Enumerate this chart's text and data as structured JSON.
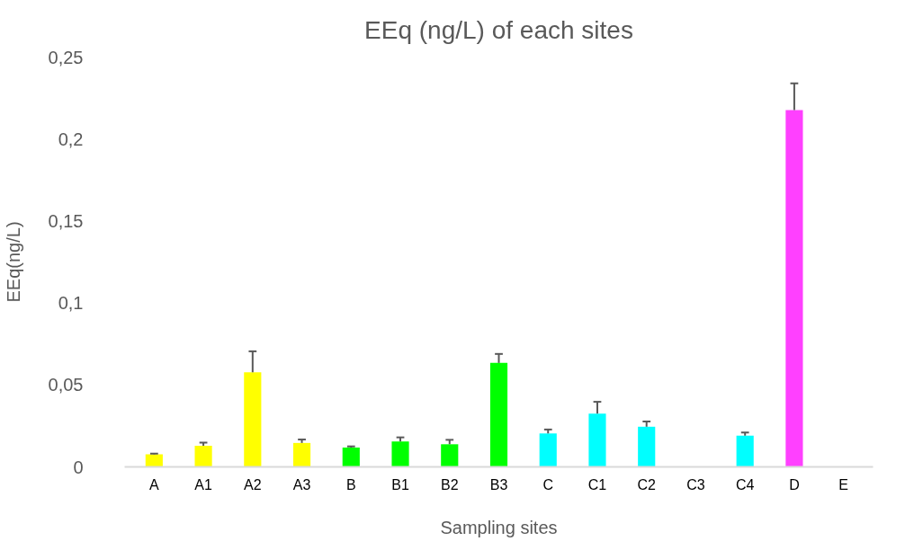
{
  "chart_data": {
    "type": "bar",
    "title": "EEq (ng/L) of each sites",
    "xlabel": "Sampling sites",
    "ylabel": "EEq(ng/L)",
    "categories": [
      "A",
      "A1",
      "A2",
      "A3",
      "B",
      "B1",
      "B2",
      "B3",
      "C",
      "C1",
      "C2",
      "C3",
      "C4",
      "D",
      "E"
    ],
    "values": [
      0.0077,
      0.0129,
      0.0577,
      0.0146,
      0.0118,
      0.0155,
      0.0138,
      0.0634,
      0.0204,
      0.0325,
      0.0245,
      0,
      0.0191,
      0.2177,
      0
    ],
    "errors": [
      [
        0.0077,
        0.0081
      ],
      [
        0.0129,
        0.0148
      ],
      [
        0.0577,
        0.0705
      ],
      [
        0.0146,
        0.0167
      ],
      [
        0.0118,
        0.0125
      ],
      [
        0.0155,
        0.018
      ],
      [
        0.0138,
        0.0165
      ],
      [
        0.0634,
        0.0689
      ],
      [
        0.0204,
        0.0228
      ],
      [
        0.0325,
        0.0397
      ],
      [
        0.0245,
        0.0277
      ],
      null,
      [
        0.0191,
        0.021
      ],
      [
        0.2177,
        0.234
      ],
      null
    ],
    "colors": [
      "#ffff00",
      "#ffff00",
      "#ffff00",
      "#ffff00",
      "#00ff00",
      "#00ff00",
      "#00ff00",
      "#00ff00",
      "#00ffff",
      "#00ffff",
      "#00ffff",
      "#00ffff",
      "#00ffff",
      "#ff40ff",
      "#ff40ff"
    ],
    "ylim": [
      0,
      0.25
    ],
    "yticks": [
      0,
      {
        "value": 0.05,
        "label": "0,05"
      },
      {
        "value": 0.1,
        "label": "0,1"
      },
      {
        "value": 0.15,
        "label": "0,15"
      },
      {
        "value": 0.2,
        "label": "0,2"
      },
      {
        "value": 0.25,
        "label": "0,25"
      }
    ],
    "grid": false
  }
}
